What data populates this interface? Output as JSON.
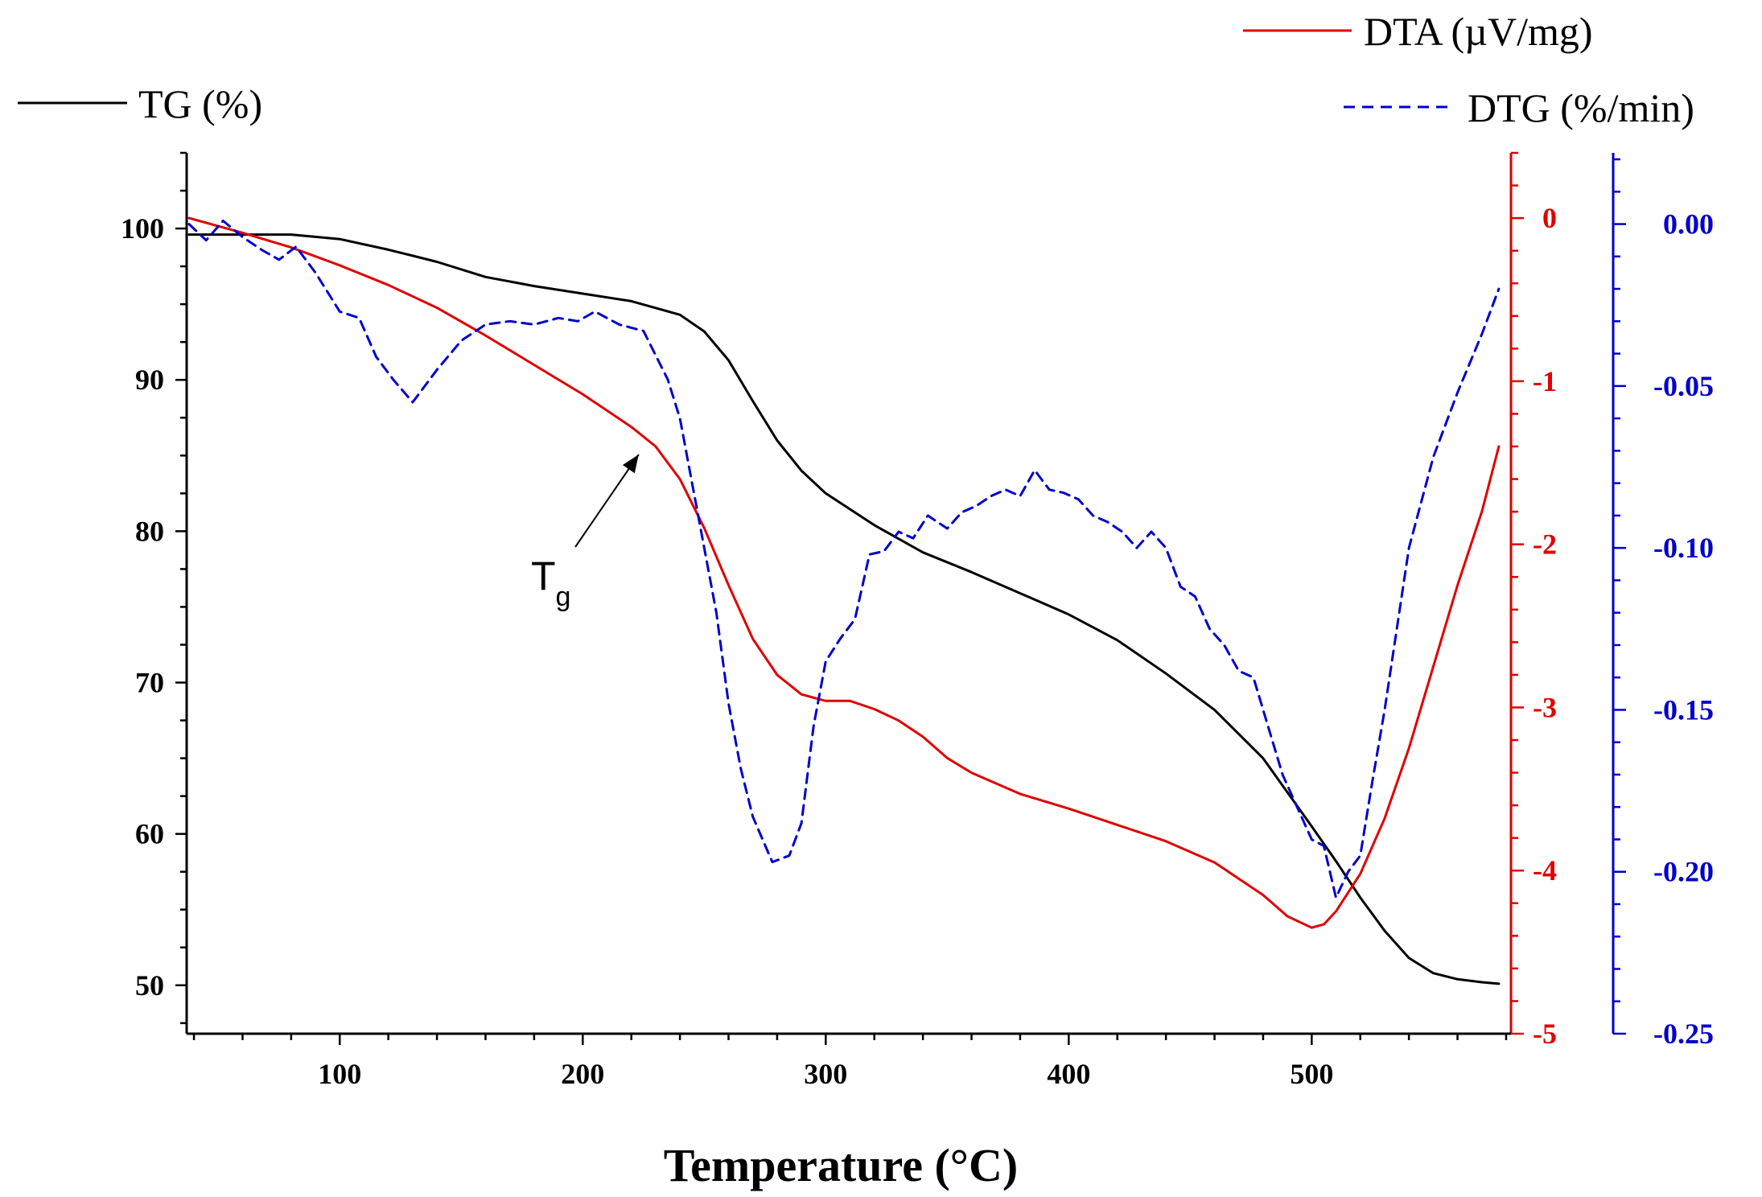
{
  "chart_data": {
    "type": "line",
    "xlabel": "Temperature (°C)",
    "xlim": [
      37,
      582
    ],
    "x_ticks": [
      100,
      200,
      300,
      400,
      500
    ],
    "axes": {
      "tg": {
        "ylim": [
          46.8,
          105
        ],
        "ticks": [
          50,
          60,
          70,
          80,
          90,
          100
        ],
        "tick_labels": [
          "50",
          "60",
          "70",
          "80",
          "90",
          "100"
        ],
        "color": "#000000"
      },
      "dta": {
        "ylim": [
          -5,
          0.4
        ],
        "ticks": [
          -5,
          -4,
          -3,
          -2,
          -1,
          0
        ],
        "tick_labels": [
          "-5",
          "-4",
          "-3",
          "-2",
          "-1",
          "0"
        ],
        "color": "#e00000"
      },
      "dtg": {
        "ylim": [
          -0.25,
          0.022
        ],
        "ticks": [
          -0.25,
          -0.2,
          -0.15,
          -0.1,
          -0.05,
          0
        ],
        "tick_labels": [
          "-0.25",
          "-0.20",
          "-0.15",
          "-0.10",
          "-0.05",
          "0.00"
        ],
        "color": "#0000cc"
      }
    },
    "series": [
      {
        "name": "TG (%)",
        "axis": "tg",
        "color": "#000000",
        "dash": "solid",
        "x": [
          38,
          60,
          80,
          100,
          120,
          140,
          160,
          180,
          200,
          220,
          240,
          250,
          260,
          270,
          280,
          290,
          300,
          320,
          340,
          360,
          380,
          400,
          420,
          440,
          460,
          480,
          500,
          510,
          520,
          530,
          540,
          550,
          560,
          570,
          577
        ],
        "y": [
          99.6,
          99.6,
          99.6,
          99.3,
          98.6,
          97.8,
          96.8,
          96.2,
          95.7,
          95.2,
          94.3,
          93.2,
          91.3,
          88.6,
          86.0,
          84.0,
          82.5,
          80.4,
          78.6,
          77.3,
          75.9,
          74.5,
          72.8,
          70.6,
          68.2,
          65.0,
          60.5,
          58.2,
          55.8,
          53.6,
          51.8,
          50.8,
          50.4,
          50.2,
          50.1
        ]
      },
      {
        "name": "DTA (µV/mg)",
        "axis": "dta",
        "color": "#e00000",
        "dash": "solid",
        "x": [
          38,
          60,
          80,
          100,
          120,
          140,
          160,
          180,
          200,
          220,
          230,
          240,
          250,
          260,
          270,
          280,
          290,
          300,
          310,
          320,
          330,
          340,
          350,
          360,
          380,
          400,
          420,
          440,
          460,
          480,
          490,
          500,
          505,
          510,
          520,
          530,
          540,
          550,
          560,
          570,
          577
        ],
        "y": [
          0,
          -0.09,
          -0.18,
          -0.29,
          -0.41,
          -0.55,
          -0.72,
          -0.9,
          -1.08,
          -1.28,
          -1.4,
          -1.6,
          -1.9,
          -2.25,
          -2.58,
          -2.8,
          -2.92,
          -2.96,
          -2.96,
          -3.01,
          -3.08,
          -3.18,
          -3.31,
          -3.4,
          -3.53,
          -3.62,
          -3.72,
          -3.82,
          -3.95,
          -4.15,
          -4.28,
          -4.35,
          -4.33,
          -4.25,
          -4.02,
          -3.68,
          -3.25,
          -2.75,
          -2.25,
          -1.8,
          -1.4
        ]
      },
      {
        "name": "DTG (%/min)",
        "axis": "dtg",
        "color": "#0000cc",
        "dash": "dashed",
        "x": [
          38,
          45,
          52,
          60,
          68,
          75,
          82,
          90,
          100,
          108,
          115,
          122,
          130,
          135,
          140,
          150,
          160,
          170,
          180,
          190,
          198,
          205,
          215,
          225,
          235,
          240,
          245,
          250,
          255,
          260,
          265,
          270,
          278,
          285,
          290,
          295,
          300,
          306,
          312,
          318,
          324,
          330,
          336,
          342,
          350,
          356,
          362,
          368,
          374,
          380,
          386,
          392,
          398,
          404,
          410,
          416,
          422,
          428,
          434,
          440,
          446,
          452,
          458,
          464,
          470,
          476,
          482,
          488,
          494,
          500,
          505,
          510,
          515,
          520,
          525,
          530,
          540,
          550,
          560,
          570,
          577
        ],
        "y": [
          0.0,
          -0.005,
          0.001,
          -0.004,
          -0.008,
          -0.011,
          -0.007,
          -0.015,
          -0.027,
          -0.029,
          -0.041,
          -0.048,
          -0.055,
          -0.05,
          -0.045,
          -0.036,
          -0.031,
          -0.03,
          -0.031,
          -0.029,
          -0.03,
          -0.027,
          -0.031,
          -0.033,
          -0.048,
          -0.06,
          -0.08,
          -0.1,
          -0.12,
          -0.148,
          -0.168,
          -0.183,
          -0.197,
          -0.195,
          -0.185,
          -0.155,
          -0.135,
          -0.128,
          -0.122,
          -0.102,
          -0.101,
          -0.095,
          -0.097,
          -0.09,
          -0.094,
          -0.089,
          -0.087,
          -0.084,
          -0.082,
          -0.084,
          -0.076,
          -0.082,
          -0.083,
          -0.085,
          -0.09,
          -0.092,
          -0.095,
          -0.1,
          -0.095,
          -0.1,
          -0.112,
          -0.115,
          -0.125,
          -0.13,
          -0.138,
          -0.14,
          -0.155,
          -0.17,
          -0.18,
          -0.19,
          -0.192,
          -0.208,
          -0.2,
          -0.195,
          -0.172,
          -0.15,
          -0.1,
          -0.072,
          -0.052,
          -0.034,
          -0.02
        ]
      }
    ],
    "annotations": [
      {
        "label": "T",
        "subscript": "g",
        "target_x": 227,
        "axis": "dta",
        "target_y": -1.4
      }
    ],
    "legend_placement": "top",
    "grid": false
  }
}
